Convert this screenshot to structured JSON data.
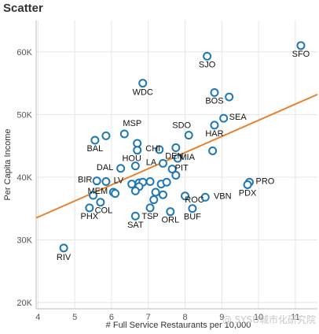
{
  "header": {
    "title": "Scatter"
  },
  "chart_data": {
    "type": "scatter",
    "title": "Scatter",
    "xlabel": "# Full Service Restaurants per 10,000",
    "ylabel": "Per Capita Income",
    "xlim": [
      3.95,
      11.6
    ],
    "ylim": [
      19000,
      65000
    ],
    "xticks": [
      4,
      5,
      6,
      7,
      8,
      9,
      10,
      11
    ],
    "yticks": [
      20000,
      30000,
      40000,
      50000,
      60000
    ],
    "ytick_labels": [
      "20K",
      "30K",
      "40K",
      "50K",
      "60K"
    ],
    "grid": true,
    "colors": {
      "marker": "#1f77b4",
      "trendline": "#e8822e",
      "grid": "#e6e6e6"
    },
    "trendline": {
      "x": [
        3.95,
        11.6
      ],
      "y": [
        33500,
        53200
      ]
    },
    "points": [
      {
        "x": 11.15,
        "y": 61000,
        "label": "SFO"
      },
      {
        "x": 8.6,
        "y": 59300,
        "label": "SJO"
      },
      {
        "x": 6.85,
        "y": 55000,
        "label": "WDC"
      },
      {
        "x": 8.8,
        "y": 53500,
        "label": "BOS"
      },
      {
        "x": 9.2,
        "y": 52800
      },
      {
        "x": 9.05,
        "y": 49400,
        "label": "SEA"
      },
      {
        "x": 8.8,
        "y": 48300,
        "label": "HAR"
      },
      {
        "x": 6.35,
        "y": 46900,
        "label": "MSP"
      },
      {
        "x": 5.85,
        "y": 46600
      },
      {
        "x": 5.55,
        "y": 45900,
        "label": "BAL"
      },
      {
        "x": 6.7,
        "y": 45400
      },
      {
        "x": 6.7,
        "y": 44300,
        "label": "HOU"
      },
      {
        "x": 7.3,
        "y": 44400,
        "label": "CHI"
      },
      {
        "x": 8.1,
        "y": 46700,
        "label": "SDO"
      },
      {
        "x": 7.75,
        "y": 44700,
        "label": "DEN"
      },
      {
        "x": 8.75,
        "y": 44200
      },
      {
        "x": 7.8,
        "y": 43000,
        "label": "MIA"
      },
      {
        "x": 7.4,
        "y": 42200,
        "label": "LA"
      },
      {
        "x": 6.65,
        "y": 41800
      },
      {
        "x": 6.25,
        "y": 41400,
        "label": "DAL"
      },
      {
        "x": 7.65,
        "y": 41300,
        "label": "PIT"
      },
      {
        "x": 7.75,
        "y": 40300
      },
      {
        "x": 5.6,
        "y": 39400,
        "label": "BIR"
      },
      {
        "x": 5.85,
        "y": 39300,
        "label": "LV"
      },
      {
        "x": 6.55,
        "y": 38900
      },
      {
        "x": 6.75,
        "y": 39100
      },
      {
        "x": 6.85,
        "y": 39200
      },
      {
        "x": 6.75,
        "y": 38500
      },
      {
        "x": 7.05,
        "y": 39300
      },
      {
        "x": 7.35,
        "y": 38900
      },
      {
        "x": 7.5,
        "y": 39200
      },
      {
        "x": 6.65,
        "y": 37800
      },
      {
        "x": 7.2,
        "y": 37600
      },
      {
        "x": 7.4,
        "y": 37200
      },
      {
        "x": 7.15,
        "y": 36400
      },
      {
        "x": 8.0,
        "y": 37000,
        "label": "ROC"
      },
      {
        "x": 8.55,
        "y": 36800,
        "label": "VBN"
      },
      {
        "x": 6.05,
        "y": 37600,
        "label": "MEM"
      },
      {
        "x": 6.1,
        "y": 37400
      },
      {
        "x": 5.5,
        "y": 37100
      },
      {
        "x": 5.7,
        "y": 36000,
        "label": "COL"
      },
      {
        "x": 5.4,
        "y": 35100,
        "label": "PHX"
      },
      {
        "x": 7.05,
        "y": 35100,
        "label": "TSP"
      },
      {
        "x": 7.6,
        "y": 34500,
        "label": "ORL"
      },
      {
        "x": 8.2,
        "y": 35000,
        "label": "BUF"
      },
      {
        "x": 6.65,
        "y": 33800,
        "label": "SAT"
      },
      {
        "x": 9.75,
        "y": 39200,
        "label": "PRO"
      },
      {
        "x": 9.7,
        "y": 38800,
        "label": "PDX"
      },
      {
        "x": 4.7,
        "y": 28700,
        "label": "RIV"
      }
    ]
  },
  "watermark": "@ SYSU城市化研究院"
}
